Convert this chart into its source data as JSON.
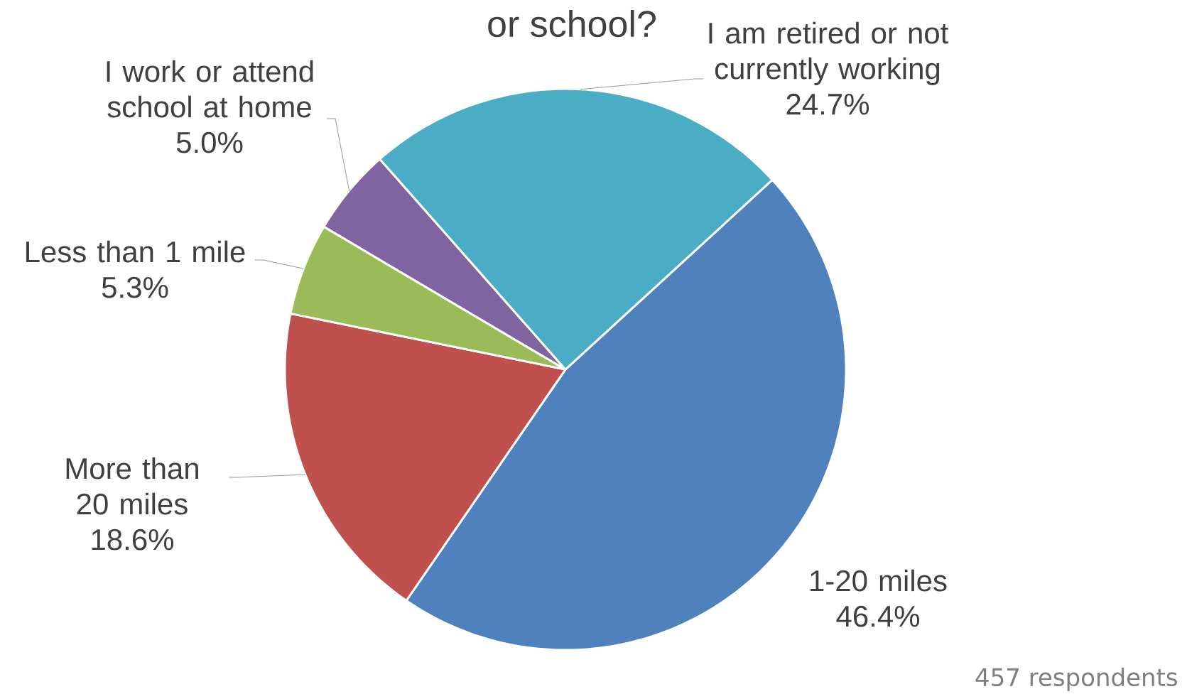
{
  "chart_data": {
    "type": "pie",
    "title": "or school?",
    "categories": [
      "1-20 miles",
      "More than 20 miles",
      "Less than 1 mile",
      "I work or attend school at home",
      "I am retired or not currently working"
    ],
    "values": [
      46.4,
      18.6,
      5.3,
      5.0,
      24.7
    ],
    "value_labels": [
      "46.4%",
      "18.6%",
      "5.3%",
      "5.0%",
      "24.7%"
    ],
    "colors": [
      "#4f81bd",
      "#c0504d",
      "#9bbb59",
      "#8064a2",
      "#4bacc6"
    ],
    "annotations": [
      "457 respondents"
    ]
  }
}
